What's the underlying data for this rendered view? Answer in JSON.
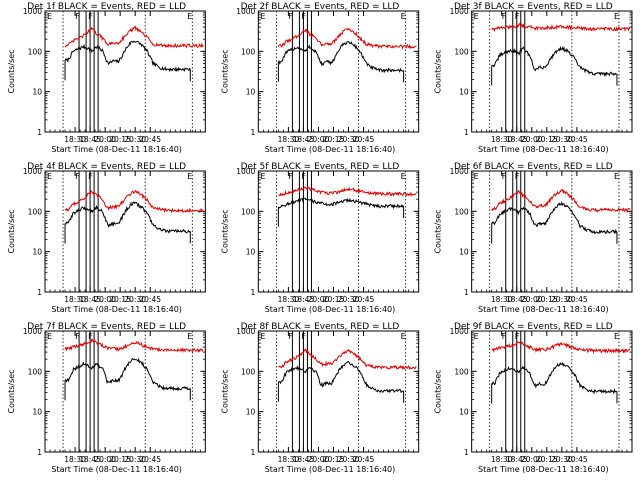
{
  "figure": {
    "colors": {
      "events": "#000000",
      "lld": "#e00000",
      "axes": "#000000"
    },
    "common": {
      "type": "line",
      "xlabel": "Start Time (08-Dec-11 18:16:40)",
      "ylabel": "Counts/sec",
      "y_scale": "log",
      "ylim": [
        1,
        1000
      ],
      "yticks": [
        "1",
        "10",
        "100",
        "1000"
      ],
      "xlim": [
        "18:16",
        "20:57"
      ],
      "xtick_labels": [
        "18:30",
        "18:45",
        "20:00",
        "20:15",
        "20:30",
        "20:45"
      ],
      "xtick_minutes": [
        30,
        45,
        60,
        75,
        90,
        105
      ],
      "time_offsets_min": [
        5,
        10,
        20,
        25,
        29,
        33,
        36,
        40,
        44,
        46,
        50,
        55,
        58,
        63,
        68,
        72,
        78,
        84,
        90,
        95,
        99,
        103
      ],
      "legend": "BLACK = Events, RED = LLD"
    }
  },
  "chart_data": [
    {
      "type": "line",
      "title": "Det 1f BLACK = Events, RED = LLD",
      "markers": [
        {
          "t": 0,
          "label": "E"
        },
        {
          "t": 33,
          "label": "F"
        },
        {
          "t": 44,
          "label": "F"
        },
        {
          "t": 102,
          "label": "E"
        }
      ],
      "series": [
        {
          "name": "BLACK = Events",
          "values": [
            60,
            100,
            130,
            120,
            100,
            130,
            120,
            100,
            55,
            50,
            58,
            55,
            70,
            120,
            170,
            180,
            150,
            100,
            50,
            42,
            38,
            36
          ]
        },
        {
          "name": "RED = LLD",
          "values": [
            140,
            180,
            240,
            300,
            360,
            280,
            260,
            200,
            160,
            150,
            160,
            160,
            190,
            260,
            340,
            380,
            300,
            220,
            150,
            145,
            140,
            138
          ]
        }
      ]
    },
    {
      "type": "line",
      "title": "Det 2f BLACK = Events, RED = LLD",
      "markers": [
        {
          "t": 0,
          "label": "E"
        },
        {
          "t": 33,
          "label": "F"
        },
        {
          "t": 44,
          "label": "F"
        },
        {
          "t": 102,
          "label": "E"
        }
      ],
      "series": [
        {
          "name": "BLACK = Events",
          "values": [
            55,
            95,
            125,
            115,
            100,
            130,
            115,
            95,
            52,
            48,
            55,
            52,
            68,
            115,
            160,
            170,
            140,
            95,
            48,
            40,
            36,
            34
          ]
        },
        {
          "name": "RED = LLD",
          "values": [
            135,
            175,
            230,
            290,
            340,
            270,
            250,
            195,
            155,
            145,
            155,
            155,
            185,
            250,
            330,
            360,
            290,
            210,
            148,
            140,
            136,
            132
          ]
        }
      ]
    },
    {
      "type": "line",
      "title": "Det 3f BLACK = Events, RED = LLD",
      "markers": [
        {
          "t": 0,
          "label": "E"
        },
        {
          "t": 33,
          "label": "F"
        },
        {
          "t": 44,
          "label": "F"
        },
        {
          "t": 102,
          "label": "E"
        }
      ],
      "series": [
        {
          "name": "BLACK = Events",
          "values": [
            45,
            80,
            105,
            100,
            90,
            120,
            100,
            80,
            40,
            35,
            40,
            40,
            50,
            80,
            110,
            120,
            100,
            70,
            40,
            34,
            30,
            28
          ]
        },
        {
          "name": "RED = LLD",
          "values": [
            360,
            380,
            400,
            420,
            450,
            420,
            420,
            400,
            380,
            370,
            380,
            380,
            390,
            400,
            410,
            420,
            400,
            380,
            370,
            365,
            360,
            360
          ]
        }
      ]
    },
    {
      "type": "line",
      "title": "Det 4f BLACK = Events, RED = LLD",
      "markers": [
        {
          "t": 0,
          "label": "E"
        },
        {
          "t": 33,
          "label": "F"
        },
        {
          "t": 44,
          "label": "F"
        },
        {
          "t": 102,
          "label": "E"
        }
      ],
      "series": [
        {
          "name": "BLACK = Events",
          "values": [
            50,
            90,
            120,
            115,
            100,
            125,
            115,
            95,
            50,
            45,
            50,
            50,
            65,
            110,
            150,
            160,
            130,
            90,
            45,
            38,
            34,
            32
          ]
        },
        {
          "name": "RED = LLD",
          "values": [
            110,
            150,
            200,
            260,
            320,
            250,
            230,
            180,
            130,
            120,
            130,
            130,
            160,
            220,
            290,
            320,
            260,
            190,
            120,
            115,
            110,
            105
          ]
        }
      ]
    },
    {
      "type": "line",
      "title": "Det 5f BLACK = Events, RED = LLD",
      "markers": [
        {
          "t": 0,
          "label": "E"
        },
        {
          "t": 33,
          "label": "F"
        },
        {
          "t": 44,
          "label": "F"
        },
        {
          "t": 102,
          "label": "E"
        }
      ],
      "series": [
        {
          "name": "BLACK = Events",
          "values": [
            130,
            150,
            175,
            190,
            200,
            185,
            180,
            170,
            160,
            155,
            150,
            150,
            155,
            165,
            180,
            190,
            180,
            165,
            150,
            145,
            140,
            135
          ]
        },
        {
          "name": "RED = LLD",
          "values": [
            260,
            290,
            320,
            360,
            400,
            360,
            340,
            320,
            300,
            290,
            285,
            285,
            295,
            310,
            340,
            360,
            340,
            310,
            290,
            280,
            275,
            270
          ]
        }
      ]
    },
    {
      "type": "line",
      "title": "Det 6f BLACK = Events, RED = LLD",
      "markers": [
        {
          "t": 0,
          "label": "E"
        },
        {
          "t": 33,
          "label": "F"
        },
        {
          "t": 44,
          "label": "F"
        },
        {
          "t": 102,
          "label": "E"
        }
      ],
      "series": [
        {
          "name": "BLACK = Events",
          "values": [
            50,
            85,
            115,
            110,
            95,
            120,
            110,
            90,
            48,
            44,
            50,
            48,
            62,
            105,
            145,
            155,
            125,
            85,
            44,
            37,
            33,
            31
          ]
        },
        {
          "name": "RED = LLD",
          "values": [
            115,
            155,
            205,
            260,
            320,
            250,
            230,
            180,
            135,
            125,
            135,
            135,
            165,
            225,
            295,
            325,
            265,
            195,
            125,
            118,
            112,
            108
          ]
        }
      ]
    },
    {
      "type": "line",
      "title": "Det 7f BLACK = Events, RED = LLD",
      "markers": [
        {
          "t": 0,
          "label": "E"
        },
        {
          "t": 33,
          "label": "F"
        },
        {
          "t": 44,
          "label": "F"
        },
        {
          "t": 102,
          "label": "E"
        }
      ],
      "series": [
        {
          "name": "BLACK = Events",
          "values": [
            60,
            110,
            150,
            140,
            120,
            150,
            135,
            110,
            55,
            50,
            60,
            58,
            75,
            130,
            190,
            200,
            170,
            110,
            55,
            45,
            40,
            38
          ]
        },
        {
          "name": "RED = LLD",
          "values": [
            360,
            400,
            460,
            520,
            600,
            520,
            480,
            420,
            380,
            360,
            360,
            360,
            380,
            420,
            480,
            520,
            460,
            400,
            360,
            350,
            340,
            335
          ]
        }
      ]
    },
    {
      "type": "line",
      "title": "Det 8f BLACK = Events, RED = LLD",
      "markers": [
        {
          "t": 0,
          "label": "E"
        },
        {
          "t": 33,
          "label": "F"
        },
        {
          "t": 44,
          "label": "F"
        },
        {
          "t": 102,
          "label": "E"
        }
      ],
      "series": [
        {
          "name": "BLACK = Events",
          "values": [
            55,
            95,
            125,
            115,
            100,
            125,
            115,
            95,
            50,
            46,
            52,
            50,
            65,
            110,
            155,
            165,
            135,
            95,
            46,
            39,
            35,
            33
          ]
        },
        {
          "name": "RED = LLD",
          "values": [
            130,
            170,
            220,
            270,
            330,
            270,
            250,
            200,
            160,
            150,
            155,
            155,
            180,
            240,
            300,
            330,
            270,
            200,
            140,
            135,
            130,
            126
          ]
        }
      ]
    },
    {
      "type": "line",
      "title": "Det 9f BLACK = Events, RED = LLD",
      "markers": [
        {
          "t": 0,
          "label": "E"
        },
        {
          "t": 33,
          "label": "F"
        },
        {
          "t": 44,
          "label": "F"
        },
        {
          "t": 102,
          "label": "E"
        }
      ],
      "series": [
        {
          "name": "BLACK = Events",
          "values": [
            50,
            90,
            120,
            110,
            95,
            120,
            110,
            90,
            48,
            44,
            50,
            48,
            62,
            105,
            145,
            155,
            125,
            88,
            45,
            38,
            34,
            32
          ]
        },
        {
          "name": "RED = LLD",
          "values": [
            340,
            380,
            430,
            480,
            560,
            480,
            450,
            400,
            360,
            340,
            345,
            345,
            360,
            400,
            450,
            480,
            430,
            380,
            345,
            335,
            330,
            325
          ]
        }
      ]
    }
  ]
}
